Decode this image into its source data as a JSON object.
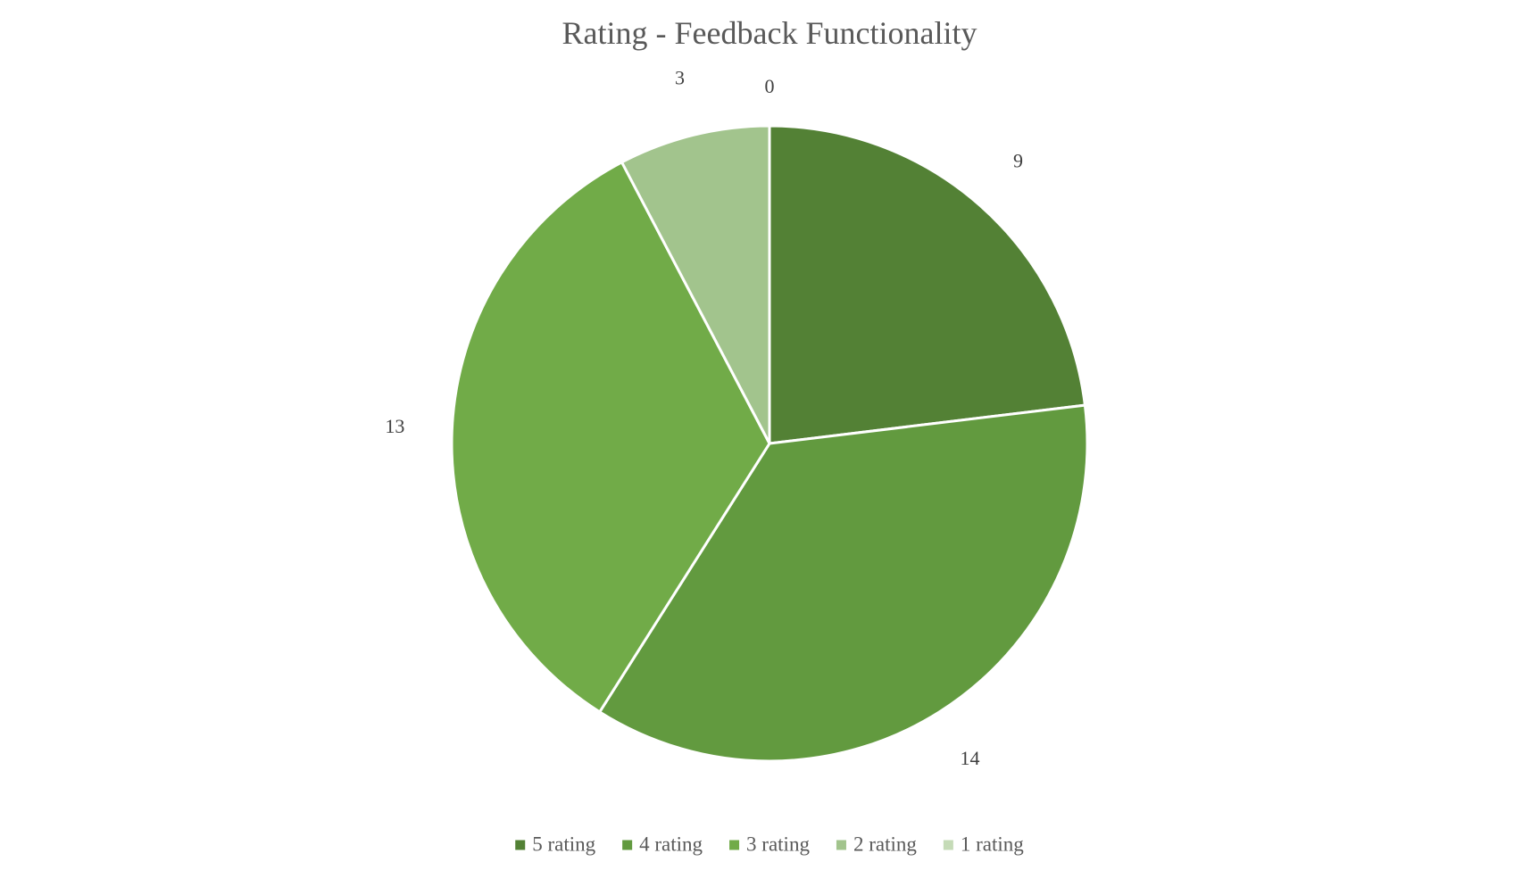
{
  "chart_data": {
    "type": "pie",
    "title": "Rating - Feedback Functionality",
    "categories": [
      "5 rating",
      "4 rating",
      "3 rating",
      "2 rating",
      "1 rating"
    ],
    "values": [
      9,
      14,
      13,
      3,
      0
    ],
    "colors": [
      "#538135",
      "#629a3f",
      "#71ab48",
      "#a2c48d",
      "#c5dbb7"
    ],
    "data_labels": [
      "9",
      "14",
      "13",
      "3",
      "0"
    ],
    "start_angle": "12 o'clock",
    "direction": "clockwise",
    "legend_position": "bottom"
  }
}
